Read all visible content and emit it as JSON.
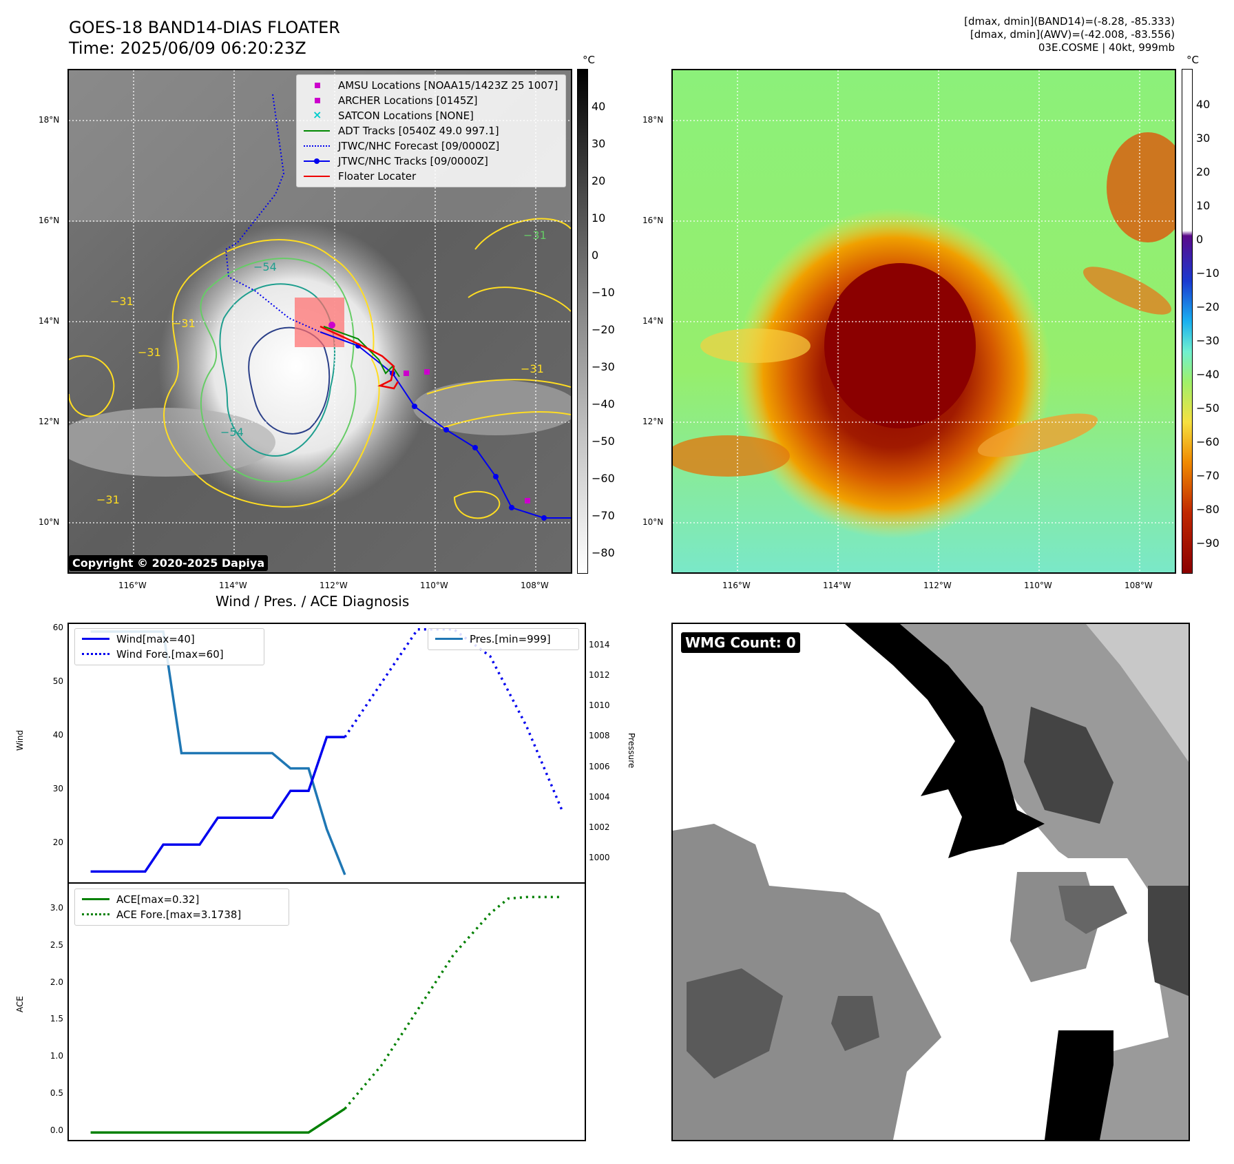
{
  "header": {
    "title_line1": "GOES-18 BAND14-DIAS FLOATER",
    "title_line2": "Time: 2025/06/09 06:20:23Z",
    "meta_line1": "[dmax, dmin](BAND14)=(-8.28, -85.333)",
    "meta_line2": "[dmax, dmin](AWV)=(-42.008, -83.556)",
    "meta_line3": "03E.COSME | 40kt, 999mb"
  },
  "map_axes": {
    "lat_ticks": [
      "18°N",
      "16°N",
      "14°N",
      "12°N",
      "10°N"
    ],
    "lon_ticks": [
      "116°W",
      "114°W",
      "112°W",
      "110°W",
      "108°W"
    ]
  },
  "ir_panel": {
    "colorbar_unit": "°C",
    "colorbar_ticks": [
      "40",
      "30",
      "20",
      "10",
      "0",
      "−10",
      "−20",
      "−30",
      "−40",
      "−50",
      "−60",
      "−70",
      "−80"
    ],
    "contour_labels": [
      "−54",
      "−31",
      "−31",
      "−31",
      "−31",
      "−54",
      "−31",
      "−31"
    ],
    "copyright": "Copyright © 2020-2025 Dapiya",
    "legend": [
      {
        "label": "AMSU Locations [NOAA15/1423Z 25 1007]",
        "color": "#cc00cc",
        "kind": "square"
      },
      {
        "label": "ARCHER Locations [0145Z]",
        "color": "#cc00cc",
        "kind": "square"
      },
      {
        "label": "SATCON Locations [NONE]",
        "color": "#00cccc",
        "kind": "x"
      },
      {
        "label": "ADT Tracks [0540Z 49.0 997.1]",
        "color": "#008800",
        "kind": "line"
      },
      {
        "label": "JTWC/NHC Forecast [09/0000Z]",
        "color": "#0000ee",
        "kind": "dotted"
      },
      {
        "label": "JTWC/NHC Tracks [09/0000Z]",
        "color": "#0000ee",
        "kind": "linedot"
      },
      {
        "label": "Floater Locater",
        "color": "#ee0000",
        "kind": "line"
      }
    ]
  },
  "awv_panel": {
    "colorbar_unit": "°C",
    "colorbar_ticks": [
      "40",
      "30",
      "20",
      "10",
      "0",
      "−10",
      "−20",
      "−30",
      "−40",
      "−50",
      "−60",
      "−70",
      "−80",
      "−90"
    ]
  },
  "wmg_panel": {
    "badge": "WMG Count: 0"
  },
  "diag": {
    "title": "Wind / Pres. / ACE Diagnosis",
    "wind_ylabel": "Wind",
    "pres_ylabel": "Pressure",
    "ace_ylabel": "ACE",
    "wind_ticks": [
      "60",
      "50",
      "40",
      "30",
      "20"
    ],
    "pres_ticks": [
      "1014",
      "1012",
      "1010",
      "1008",
      "1006",
      "1004",
      "1002",
      "1000"
    ],
    "ace_ticks": [
      "3.0",
      "2.5",
      "2.0",
      "1.5",
      "1.0",
      "0.5",
      "0.0"
    ],
    "legend_wind": "Wind[max=40]",
    "legend_wind_fore": "Wind Fore.[max=60]",
    "legend_pres": "Pres.[min=999]",
    "legend_ace": "ACE[max=0.32]",
    "legend_ace_fore": "ACE Fore.[max=3.1738]",
    "colors": {
      "wind": "#0000ee",
      "pres": "#1f77b4",
      "ace": "#008000"
    }
  },
  "chart_data": [
    {
      "type": "line",
      "title": "Wind / Pres. / ACE Diagnosis",
      "ylabel": "Wind",
      "ylim": [
        13,
        61
      ],
      "series": [
        {
          "name": "Wind[max=40]",
          "x": [
            0,
            3,
            4,
            6,
            7,
            10,
            11,
            12,
            13,
            14
          ],
          "values": [
            15,
            15,
            20,
            20,
            25,
            25,
            30,
            30,
            40,
            40
          ]
        },
        {
          "name": "Wind Fore.[max=60]",
          "x": [
            14,
            16,
            18,
            20,
            22,
            24,
            26
          ],
          "values": [
            40,
            50,
            60,
            60,
            55,
            42,
            26
          ]
        }
      ]
    },
    {
      "type": "line",
      "ylabel": "Pressure",
      "ylim": [
        998.5,
        1015.5
      ],
      "series": [
        {
          "name": "Pres.[min=999]",
          "x": [
            0,
            4,
            5,
            10,
            11,
            12,
            13,
            14
          ],
          "values": [
            1015,
            1015,
            1007,
            1007,
            1006,
            1006,
            1002,
            999
          ]
        }
      ]
    },
    {
      "type": "line",
      "ylabel": "ACE",
      "ylim": [
        -0.1,
        3.35
      ],
      "series": [
        {
          "name": "ACE[max=0.32]",
          "x": [
            0,
            12,
            14
          ],
          "values": [
            0.0,
            0.0,
            0.32
          ]
        },
        {
          "name": "ACE Fore.[max=3.1738]",
          "x": [
            14,
            16,
            18,
            20,
            22,
            23,
            24,
            26
          ],
          "values": [
            0.32,
            0.9,
            1.65,
            2.4,
            2.95,
            3.15,
            3.17,
            3.17
          ]
        }
      ]
    }
  ]
}
